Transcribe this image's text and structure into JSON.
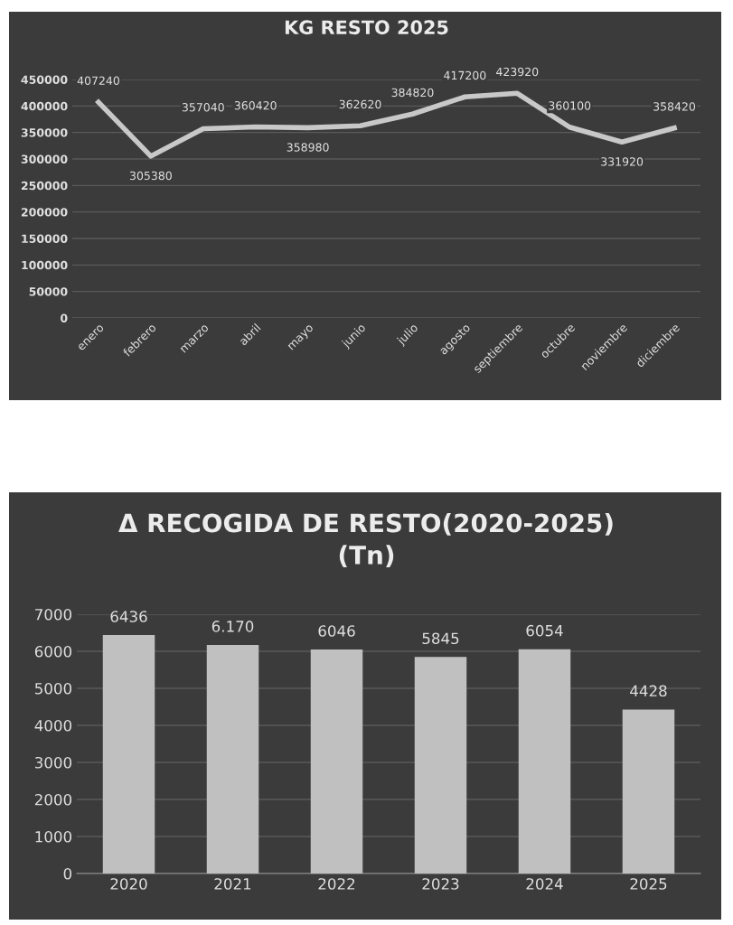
{
  "chart_data": [
    {
      "type": "line",
      "title": "KG RESTO 2025",
      "categories": [
        "enero",
        "febrero",
        "marzo",
        "abril",
        "mayo",
        "junio",
        "julio",
        "agosto",
        "septiembre",
        "octubre",
        "noviembre",
        "diciembre"
      ],
      "series": [
        {
          "color": "#c8c8c8",
          "values": [
            407240,
            305380,
            357040,
            360420,
            358980,
            362620,
            384820,
            417200,
            423920,
            360100,
            331920,
            358420
          ]
        }
      ],
      "ylim": [
        0,
        450000
      ],
      "yticks": [
        0,
        50000,
        100000,
        150000,
        200000,
        250000,
        300000,
        350000,
        400000,
        450000
      ],
      "grid": "y",
      "data_labels": true,
      "marker": "none",
      "line_style": "solid"
    },
    {
      "type": "bar",
      "title": "Δ RECOGIDA DE RESTO(2020-2025)\n(Tn)",
      "categories": [
        "2020",
        "2021",
        "2022",
        "2023",
        "2024",
        "2025"
      ],
      "series": [
        {
          "color": "#c0c0c0",
          "values": [
            6436,
            6170,
            6046,
            5845,
            6054,
            4428
          ],
          "value_labels": [
            "6436",
            "6.170",
            "6046",
            "5845",
            "6054",
            "4428"
          ]
        }
      ],
      "ylim": [
        0,
        7000
      ],
      "yticks": [
        0,
        1000,
        2000,
        3000,
        4000,
        5000,
        6000,
        7000
      ],
      "grid": "y"
    }
  ]
}
